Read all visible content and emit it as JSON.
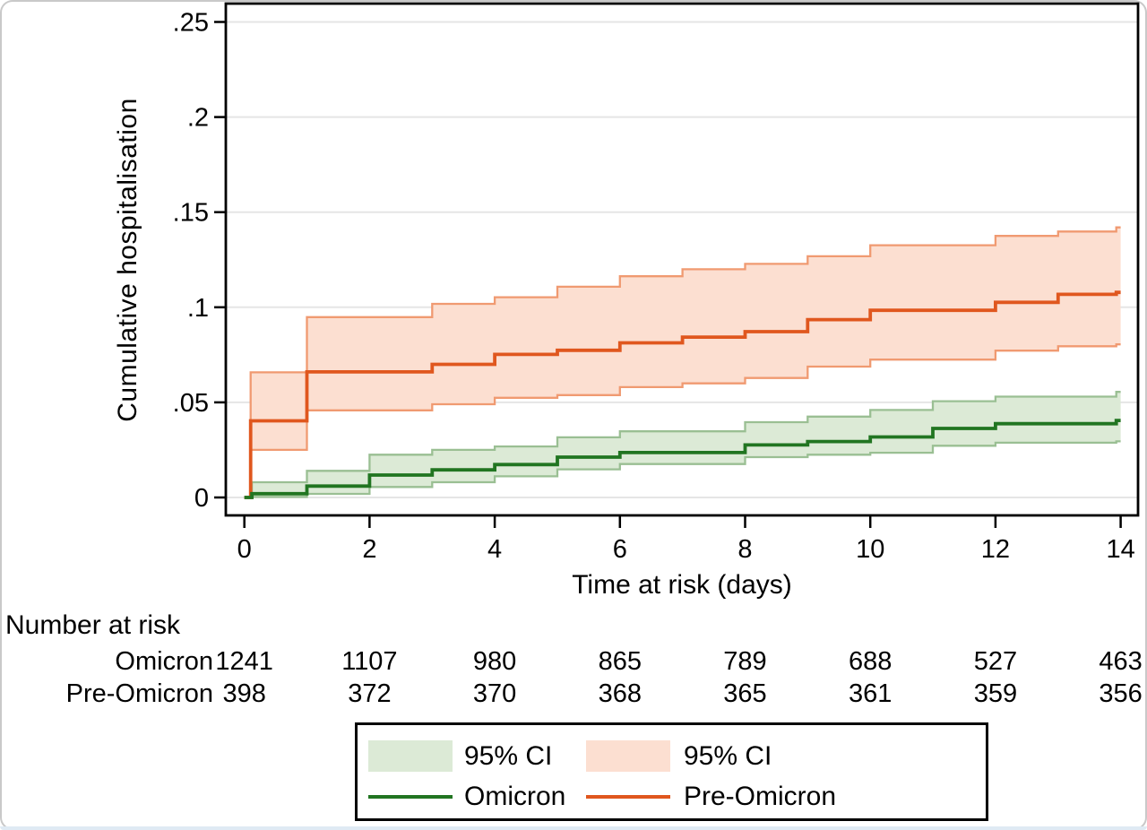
{
  "figure": {
    "kind": "kaplan-meier-cumulative-incidence-plot"
  },
  "chart_data": {
    "type": "line",
    "subtype": "step-after-with-confidence-bands",
    "title": "",
    "xlabel": "Time at risk (days)",
    "ylabel": "Cumulative hospitalisation",
    "xlim": [
      0,
      14.3
    ],
    "ylim": [
      0,
      0.2595
    ],
    "grid": "horizontal",
    "x_ticks": {
      "values": [
        0,
        2,
        4,
        6,
        8,
        10,
        12,
        14
      ],
      "labels": [
        "0",
        "2",
        "4",
        "6",
        "8",
        "10",
        "12",
        "14"
      ]
    },
    "y_ticks": {
      "values": [
        0,
        0.05,
        0.1,
        0.15,
        0.2,
        0.25
      ],
      "labels": [
        "0",
        ".05",
        ".1",
        ".15",
        ".2",
        ".25"
      ]
    },
    "series": [
      {
        "name": "Pre-Omicron",
        "ci_label": "95% CI",
        "line_color": "#e0571e",
        "ci_fill": "#fcdfd1",
        "ci_edge": "#f09a71",
        "steps": [
          [
            0,
            0
          ],
          [
            0.1,
            0.0403
          ],
          [
            1,
            0.066
          ],
          [
            3,
            0.07
          ],
          [
            4,
            0.0752
          ],
          [
            5,
            0.0774
          ],
          [
            6,
            0.0813
          ],
          [
            7,
            0.0843
          ],
          [
            8,
            0.0872
          ],
          [
            9,
            0.0935
          ],
          [
            10,
            0.0984
          ],
          [
            12,
            0.1026
          ],
          [
            13,
            0.1068
          ],
          [
            13.93,
            0.1078
          ]
        ],
        "upper": [
          [
            0,
            0
          ],
          [
            0.1,
            0.0658
          ],
          [
            1,
            0.0948
          ],
          [
            3,
            0.1018
          ],
          [
            4,
            0.1053
          ],
          [
            5,
            0.1108
          ],
          [
            6,
            0.1163
          ],
          [
            7,
            0.12
          ],
          [
            8,
            0.1228
          ],
          [
            9,
            0.1268
          ],
          [
            10,
            0.1326
          ],
          [
            12,
            0.1375
          ],
          [
            13,
            0.1398
          ],
          [
            13.93,
            0.142
          ]
        ],
        "lower": [
          [
            0,
            0
          ],
          [
            0.1,
            0.025
          ],
          [
            1,
            0.0458
          ],
          [
            3,
            0.049
          ],
          [
            4,
            0.0524
          ],
          [
            5,
            0.0538
          ],
          [
            6,
            0.058
          ],
          [
            7,
            0.06
          ],
          [
            8,
            0.0628
          ],
          [
            9,
            0.0688
          ],
          [
            10,
            0.0725
          ],
          [
            12,
            0.0772
          ],
          [
            13,
            0.0795
          ],
          [
            13.93,
            0.0805
          ]
        ]
      },
      {
        "name": "Omicron",
        "ci_label": "95% CI",
        "line_color": "#217521",
        "ci_fill": "#dcead6",
        "ci_edge": "#9abf93",
        "steps": [
          [
            0,
            0
          ],
          [
            0.12,
            0.002
          ],
          [
            1,
            0.006
          ],
          [
            2,
            0.0118
          ],
          [
            3,
            0.0145
          ],
          [
            4,
            0.0173
          ],
          [
            5,
            0.0212
          ],
          [
            6,
            0.0236
          ],
          [
            8,
            0.0276
          ],
          [
            9,
            0.0294
          ],
          [
            10,
            0.0318
          ],
          [
            11,
            0.0363
          ],
          [
            12,
            0.0388
          ],
          [
            13.93,
            0.0405
          ]
        ],
        "upper": [
          [
            0,
            0
          ],
          [
            0.12,
            0.008
          ],
          [
            1,
            0.014
          ],
          [
            2,
            0.0225
          ],
          [
            3,
            0.025
          ],
          [
            4,
            0.0268
          ],
          [
            5,
            0.0316
          ],
          [
            6,
            0.0348
          ],
          [
            8,
            0.0396
          ],
          [
            9,
            0.0425
          ],
          [
            10,
            0.046
          ],
          [
            11,
            0.0506
          ],
          [
            12,
            0.053
          ],
          [
            13.93,
            0.0555
          ]
        ],
        "lower": [
          [
            0,
            0
          ],
          [
            0.12,
            0.0003
          ],
          [
            1,
            0.0019
          ],
          [
            2,
            0.0055
          ],
          [
            3,
            0.008
          ],
          [
            4,
            0.0111
          ],
          [
            5,
            0.0148
          ],
          [
            6,
            0.0176
          ],
          [
            8,
            0.0212
          ],
          [
            9,
            0.0225
          ],
          [
            10,
            0.0235
          ],
          [
            11,
            0.0272
          ],
          [
            12,
            0.0288
          ],
          [
            13.93,
            0.0295
          ]
        ]
      }
    ]
  },
  "risk_table": {
    "title": "Number at risk",
    "time_points": [
      0,
      2,
      4,
      6,
      8,
      10,
      12,
      14
    ],
    "rows": [
      {
        "label": "Omicron",
        "values": [
          "1241",
          "1107",
          "980",
          "865",
          "789",
          "688",
          "527",
          "463"
        ]
      },
      {
        "label": "Pre-Omicron",
        "values": [
          "398",
          "372",
          "370",
          "368",
          "365",
          "361",
          "359",
          "356"
        ]
      }
    ]
  },
  "legend": {
    "entries": [
      {
        "type": "patch",
        "label": "95% CI",
        "fill": "#dcead6",
        "edge": "#9abf93"
      },
      {
        "type": "patch",
        "label": "95% CI",
        "fill": "#fcdfd1",
        "edge": "#f09a71"
      },
      {
        "type": "line",
        "label": "Omicron",
        "color": "#217521"
      },
      {
        "type": "line",
        "label": "Pre-Omicron",
        "color": "#e0571e"
      }
    ]
  },
  "colors": {
    "axis": "#000000",
    "gridline": "#e5e5e5",
    "background": "#ffffff",
    "text": "#000000"
  }
}
